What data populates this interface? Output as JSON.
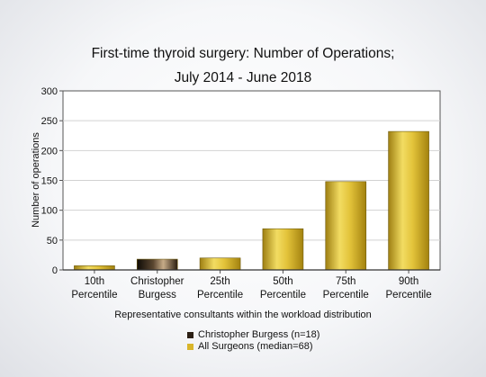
{
  "chart_data": {
    "type": "bar",
    "title_lines": [
      "First-time thyroid surgery: Number of Operations;",
      "July 2014 - June 2018"
    ],
    "xlabel": "Representative consultants within the workload distribution",
    "ylabel": "Number of operations",
    "ylim": [
      0,
      300
    ],
    "yticks": [
      "0",
      "50",
      "100",
      "150",
      "200",
      "250",
      "300"
    ],
    "grid": true,
    "categories": [
      [
        "10th",
        "Percentile"
      ],
      [
        "Christopher",
        "Burgess"
      ],
      [
        "25th",
        "Percentile"
      ],
      [
        "50th",
        "Percentile"
      ],
      [
        "75th",
        "Percentile"
      ],
      [
        "90th",
        "Percentile"
      ]
    ],
    "values": [
      7,
      18,
      20,
      69,
      148,
      232
    ],
    "bar_series": [
      1,
      0,
      1,
      1,
      1,
      1
    ],
    "legend_position": "bottom",
    "series": [
      {
        "name": "Christopher Burgess (n=18)",
        "color": "#2b1f14"
      },
      {
        "name": "All Surgeons (median=68)",
        "color": "#d9b52a"
      }
    ]
  }
}
